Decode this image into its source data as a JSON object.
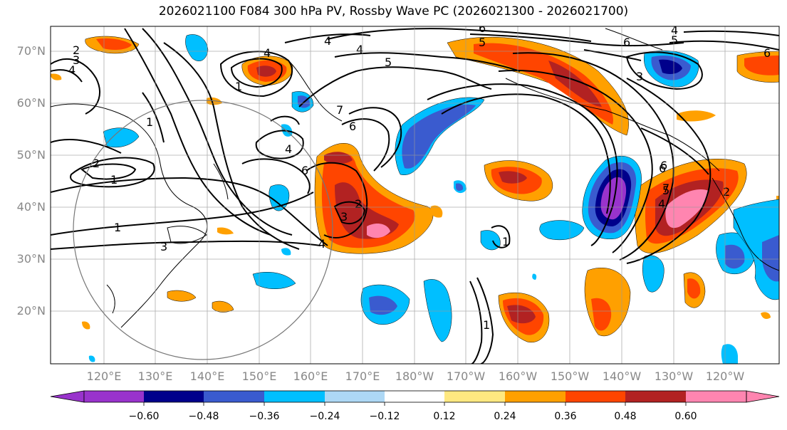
{
  "title": "2026021100 F084 300 hPa PV, Rossby Wave PC (2026021300 - 2026021700)",
  "y_ticks": [
    "70°N",
    "60°N",
    "50°N",
    "40°N",
    "30°N",
    "20°N"
  ],
  "x_ticks": [
    "120°E",
    "130°E",
    "140°E",
    "150°E",
    "160°E",
    "170°E",
    "180°W",
    "170°W",
    "160°W",
    "150°W",
    "140°W",
    "130°W",
    "120°W"
  ],
  "colorbar": {
    "ticks": [
      "−0.60",
      "−0.48",
      "−0.36",
      "−0.24",
      "−0.12",
      "0.12",
      "0.24",
      "0.36",
      "0.48",
      "0.60"
    ],
    "colors": [
      "#9933cc",
      "#00008b",
      "#3a5bcf",
      "#00bfff",
      "#add8f5",
      "#ffffff",
      "#ffe880",
      "#ffa000",
      "#ff4500",
      "#b22222",
      "#ff85b0"
    ]
  },
  "contour_labels": [
    "2",
    "3",
    "4",
    "4",
    "5",
    "5",
    "6",
    "6",
    "5",
    "4",
    "3",
    "6",
    "1",
    "2",
    "1",
    "1",
    "3",
    "4",
    "1",
    "4",
    "6",
    "7",
    "6",
    "4",
    "2",
    "3",
    "4",
    "6",
    "7",
    "1",
    "1",
    "6",
    "5",
    "4",
    "2"
  ]
}
